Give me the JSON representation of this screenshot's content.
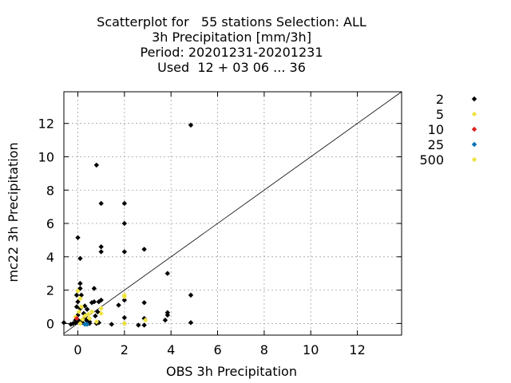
{
  "chart_data": {
    "type": "scatter",
    "title": [
      "Scatterplot for   55 stations Selection: ALL",
      "3h Precipitation [mm/3h]",
      "Period: 20201231-20201231",
      "Used  12 + 03 06 ... 36"
    ],
    "xlabel": "OBS 3h Precipitation",
    "ylabel": "mc22 3h Precipitation",
    "xlim": [
      -0.6,
      13.9
    ],
    "ylim": [
      -0.7,
      13.9
    ],
    "xticks": [
      0,
      2,
      4,
      6,
      8,
      10,
      12
    ],
    "yticks": [
      0,
      2,
      4,
      6,
      8,
      10,
      12
    ],
    "grid": true,
    "diagonal": true,
    "legend_position": "right",
    "series": [
      {
        "name": "2",
        "color": "#000000",
        "points": [
          [
            -0.6,
            0.05
          ],
          [
            -0.3,
            -0.05
          ],
          [
            -0.2,
            0.0
          ],
          [
            -0.1,
            0.05
          ],
          [
            -0.1,
            0.2
          ],
          [
            -0.05,
            1.0
          ],
          [
            -0.05,
            1.7
          ],
          [
            0.0,
            5.15
          ],
          [
            0.0,
            1.3
          ],
          [
            0.0,
            0.5
          ],
          [
            0.0,
            0.1
          ],
          [
            0.05,
            0.15
          ],
          [
            0.1,
            2.1
          ],
          [
            0.1,
            2.4
          ],
          [
            0.1,
            0.9
          ],
          [
            0.1,
            3.9
          ],
          [
            0.15,
            1.7
          ],
          [
            0.2,
            0.05
          ],
          [
            0.25,
            0.6
          ],
          [
            0.3,
            0.3
          ],
          [
            0.3,
            1.05
          ],
          [
            0.4,
            0.15
          ],
          [
            0.4,
            0.85
          ],
          [
            0.5,
            0.0
          ],
          [
            0.5,
            0.1
          ],
          [
            0.6,
            1.25
          ],
          [
            0.7,
            2.1
          ],
          [
            0.7,
            1.3
          ],
          [
            0.75,
            0.45
          ],
          [
            0.8,
            0.0
          ],
          [
            0.8,
            9.5
          ],
          [
            0.85,
            0.7
          ],
          [
            0.9,
            0.05
          ],
          [
            0.9,
            1.3
          ],
          [
            1.0,
            4.6
          ],
          [
            1.0,
            7.2
          ],
          [
            1.0,
            4.3
          ],
          [
            1.0,
            1.4
          ],
          [
            1.45,
            -0.05
          ],
          [
            1.75,
            1.1
          ],
          [
            2.0,
            7.2
          ],
          [
            2.0,
            6.0
          ],
          [
            2.0,
            4.3
          ],
          [
            2.0,
            1.4
          ],
          [
            2.0,
            0.35
          ],
          [
            2.0,
            0.0
          ],
          [
            2.6,
            -0.1
          ],
          [
            2.85,
            4.45
          ],
          [
            2.85,
            1.25
          ],
          [
            2.85,
            0.3
          ],
          [
            2.85,
            -0.1
          ],
          [
            3.75,
            0.2
          ],
          [
            3.85,
            0.5
          ],
          [
            3.85,
            0.65
          ],
          [
            3.85,
            3.0
          ],
          [
            4.85,
            11.9
          ],
          [
            4.85,
            1.7
          ],
          [
            4.85,
            0.05
          ]
        ]
      },
      {
        "name": "5",
        "color": "#f0e442",
        "points": [
          [
            -0.1,
            0.4
          ],
          [
            0.0,
            1.95
          ],
          [
            0.05,
            0.7
          ],
          [
            0.1,
            1.5
          ],
          [
            0.15,
            1.0
          ],
          [
            0.2,
            0.25
          ],
          [
            0.3,
            0.45
          ],
          [
            0.45,
            0.55
          ],
          [
            0.5,
            0.3
          ],
          [
            0.6,
            0.7
          ],
          [
            0.8,
            0.1
          ],
          [
            1.0,
            0.6
          ],
          [
            1.0,
            0.9
          ],
          [
            2.0,
            1.6
          ],
          [
            2.0,
            1.7
          ],
          [
            2.0,
            0.0
          ],
          [
            2.9,
            0.2
          ]
        ]
      },
      {
        "name": "10",
        "color": "#e02020",
        "points": [
          [
            -0.05,
            0.3
          ]
        ]
      },
      {
        "name": "25",
        "color": "#0072b2",
        "points": [
          [
            0.3,
            -0.05
          ],
          [
            0.4,
            -0.05
          ]
        ]
      },
      {
        "name": "500",
        "color": "#f0e442",
        "points": [
          [
            0.1,
            0.0
          ]
        ]
      }
    ]
  }
}
